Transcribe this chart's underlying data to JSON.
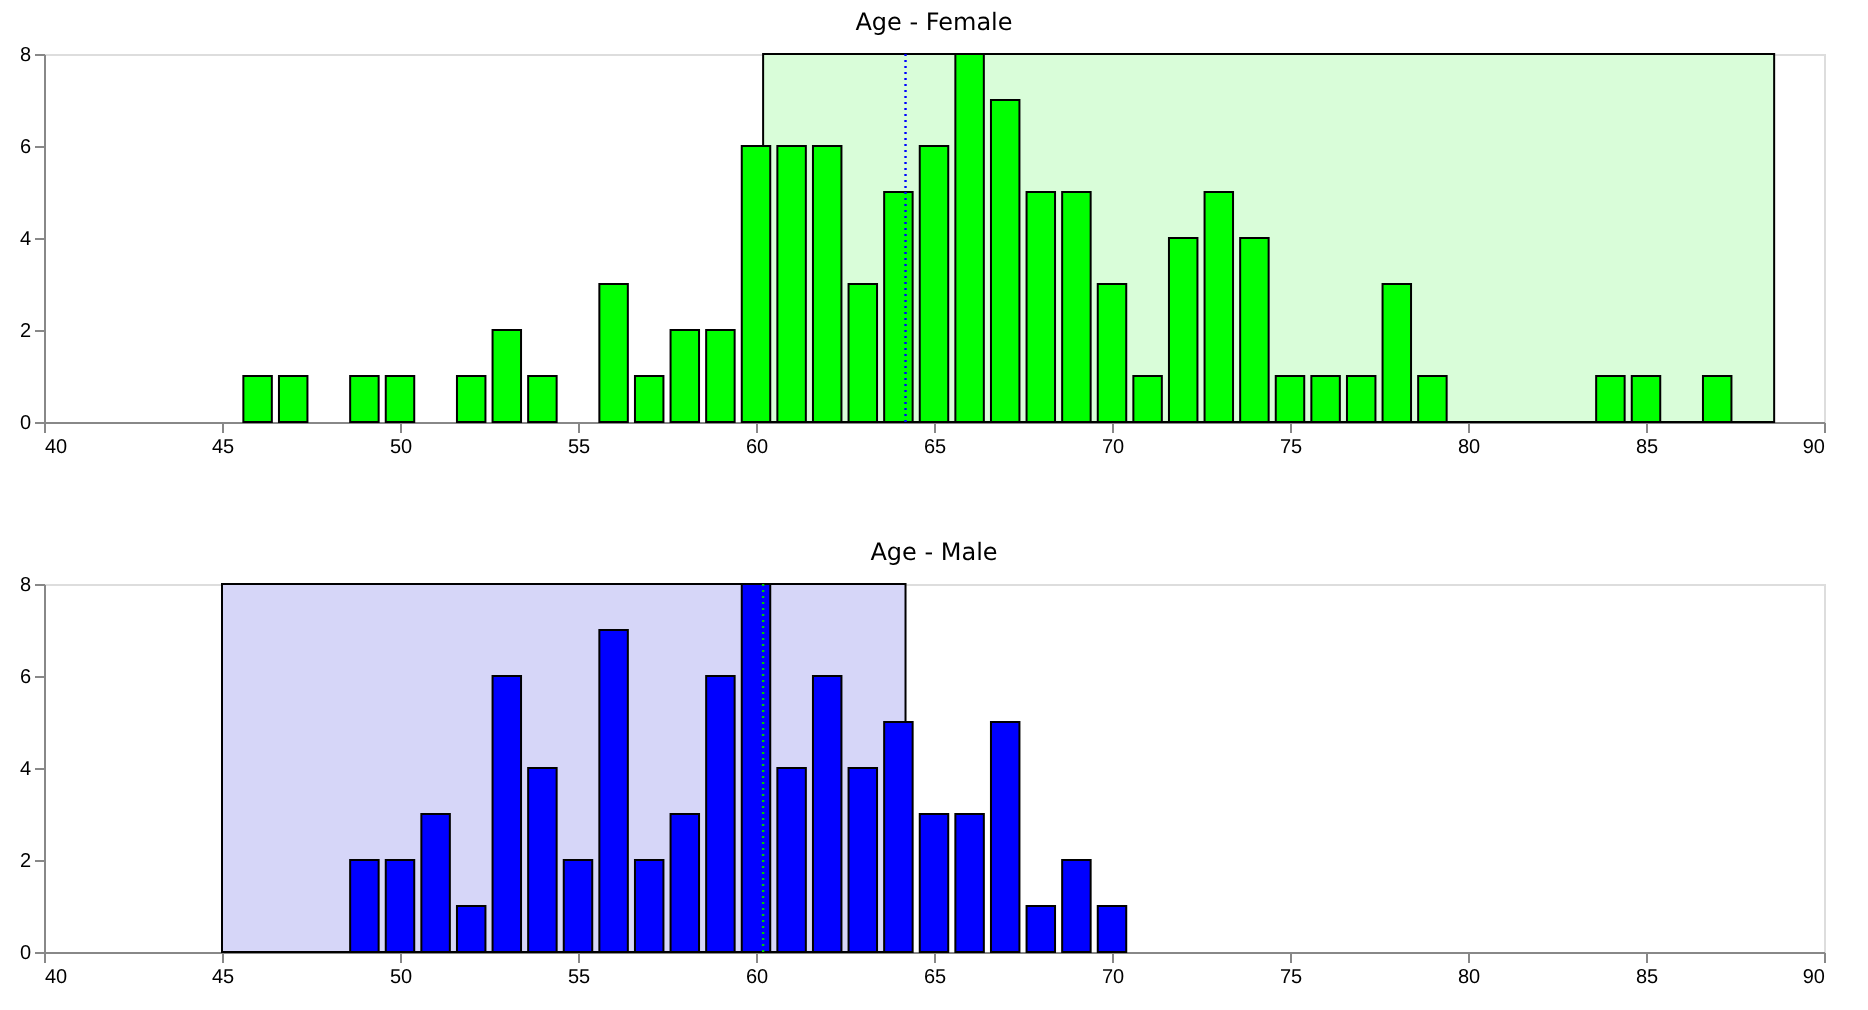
{
  "chart_data": [
    {
      "type": "bar",
      "title": "Age - Female",
      "x": [
        46,
        47,
        49,
        50,
        52,
        53,
        54,
        56,
        57,
        58,
        59,
        60,
        61,
        62,
        63,
        64,
        65,
        66,
        67,
        68,
        69,
        70,
        71,
        72,
        73,
        74,
        75,
        76,
        77,
        78,
        79,
        84,
        85,
        87
      ],
      "series": [
        {
          "color": "#00ff00",
          "values": [
            1,
            1,
            1,
            1,
            1,
            2,
            1,
            3,
            1,
            2,
            2,
            6,
            6,
            6,
            3,
            5,
            6,
            8,
            7,
            5,
            5,
            3,
            1,
            4,
            5,
            4,
            1,
            1,
            1,
            3,
            1,
            1,
            1,
            1
          ]
        }
      ],
      "xlim": [
        40,
        90
      ],
      "xticks": [
        40,
        45,
        50,
        55,
        60,
        65,
        70,
        75,
        80,
        85,
        90
      ],
      "ylim": [
        0,
        8
      ],
      "yticks": [
        0,
        2,
        4,
        6,
        8
      ],
      "grid": false,
      "bands": [
        {
          "axis": "x",
          "from": 60.2,
          "to": 88.6,
          "color": "#d9fdd9"
        }
      ],
      "ref_lines": [
        {
          "axis": "x",
          "value": 64.2,
          "color": "#0000ff",
          "line_style": "dotted"
        }
      ]
    },
    {
      "type": "bar",
      "title": "Age - Male",
      "x": [
        49,
        50,
        51,
        52,
        53,
        54,
        55,
        56,
        57,
        58,
        59,
        60,
        61,
        62,
        63,
        64,
        65,
        66,
        67,
        68,
        69,
        70
      ],
      "series": [
        {
          "color": "#0000ff",
          "values": [
            2,
            2,
            3,
            1,
            6,
            4,
            2,
            7,
            2,
            3,
            6,
            8,
            4,
            6,
            4,
            5,
            3,
            3,
            5,
            1,
            2,
            1
          ]
        }
      ],
      "xlim": [
        40,
        90
      ],
      "xticks": [
        40,
        45,
        50,
        55,
        60,
        65,
        70,
        75,
        80,
        85,
        90
      ],
      "ylim": [
        0,
        8
      ],
      "yticks": [
        0,
        2,
        4,
        6,
        8
      ],
      "grid": false,
      "bands": [
        {
          "axis": "x",
          "from": 45,
          "to": 64.2,
          "color": "#d6d6f8"
        }
      ],
      "ref_lines": [
        {
          "axis": "x",
          "value": 60.2,
          "color": "#00cc00",
          "line_style": "dotted"
        }
      ]
    }
  ]
}
